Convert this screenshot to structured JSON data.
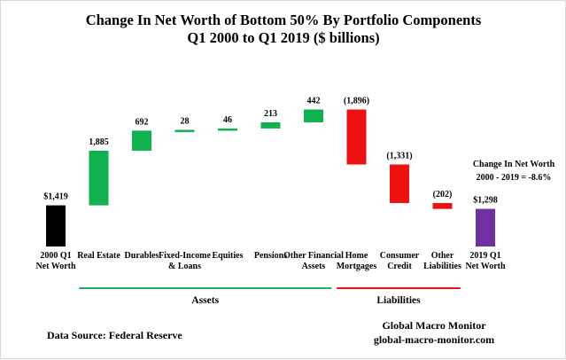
{
  "chart_data": {
    "type": "bar",
    "subtype": "waterfall",
    "title_line1": "Change In Net Worth of Bottom 50% By Portfolio Components",
    "title_line2": "Q1 2000 to Q1 2019 ($ billions)",
    "xlabel": "",
    "ylabel": "",
    "unit": "$ billions",
    "ylim": [
      0,
      5400
    ],
    "grid": false,
    "categories": [
      {
        "label_lines": [
          "2000 Q1",
          "Net Worth"
        ],
        "value_label": "$1,419",
        "value": 1419,
        "kind": "total"
      },
      {
        "label_lines": [
          "Real Estate"
        ],
        "value_label": "1,885",
        "value": 1885,
        "kind": "asset"
      },
      {
        "label_lines": [
          "Durables"
        ],
        "value_label": "692",
        "value": 692,
        "kind": "asset"
      },
      {
        "label_lines": [
          "Fixed-Income",
          "& Loans"
        ],
        "value_label": "28",
        "value": 28,
        "kind": "asset"
      },
      {
        "label_lines": [
          "Equities"
        ],
        "value_label": "46",
        "value": 46,
        "kind": "asset"
      },
      {
        "label_lines": [
          "Pensions"
        ],
        "value_label": "213",
        "value": 213,
        "kind": "asset"
      },
      {
        "label_lines": [
          "Other Financial",
          "Assets"
        ],
        "value_label": "442",
        "value": 442,
        "kind": "asset"
      },
      {
        "label_lines": [
          "Home",
          "Mortgages"
        ],
        "value_label": "(1,896)",
        "value": -1896,
        "kind": "liability"
      },
      {
        "label_lines": [
          "Consumer",
          "Credit"
        ],
        "value_label": "(1,331)",
        "value": -1331,
        "kind": "liability"
      },
      {
        "label_lines": [
          "Other",
          "Liabilities"
        ],
        "value_label": "(202)",
        "value": -202,
        "kind": "liability"
      },
      {
        "label_lines": [
          "2019 Q1",
          "Net Worth"
        ],
        "value_label": "$1,298",
        "value": 1298,
        "kind": "total_end"
      }
    ],
    "groups": [
      {
        "label": "Assets",
        "from_index": 1,
        "to_index": 6,
        "color": "#27ae60"
      },
      {
        "label": "Liabilities",
        "from_index": 7,
        "to_index": 9,
        "color": "#e8121b"
      }
    ],
    "annotation_lines": [
      "Change In Net Worth",
      "2000 - 2019 = -8.6%"
    ],
    "colors": {
      "total": "#000000",
      "asset": "#12b14f",
      "liability": "#ee1111",
      "total_end": "#7030a0"
    }
  },
  "footer": {
    "source": "Data Source:  Federal Reserve",
    "brand": "Global Macro Monitor",
    "brand_url": "global-macro-monitor.com"
  }
}
